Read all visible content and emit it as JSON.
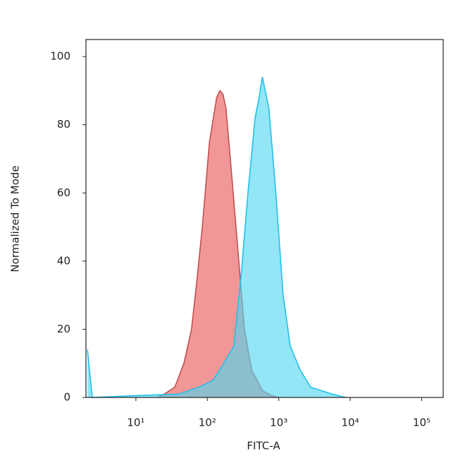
{
  "chart_data": {
    "type": "area",
    "xlabel": "FITC-A",
    "ylabel": "Normalized To Mode",
    "xscale": "log",
    "xlim": [
      2,
      200000
    ],
    "xticks": [
      {
        "value": 10,
        "label": "10¹"
      },
      {
        "value": 100,
        "label": "10²"
      },
      {
        "value": 1000,
        "label": "10³"
      },
      {
        "value": 10000,
        "label": "10⁴"
      },
      {
        "value": 100000,
        "label": "10⁵"
      }
    ],
    "ylim": [
      0,
      105
    ],
    "yticks": [
      0,
      20,
      40,
      60,
      80,
      100
    ],
    "grid": false,
    "series": [
      {
        "color": "#f08585",
        "stroke": "#c0504f",
        "x": [
          20,
          25,
          35,
          47,
          60,
          72,
          85,
          107,
          135,
          150,
          165,
          182,
          210,
          263,
          330,
          417,
          590,
          800,
          1000
        ],
        "values": [
          0,
          1,
          3,
          10,
          20,
          35,
          50,
          75,
          88,
          90,
          89,
          85,
          70,
          45,
          20,
          8,
          2,
          0.5,
          0
        ]
      },
      {
        "color": "#4fd6f0",
        "stroke": "#22c0e8",
        "x": [
          2.1,
          2.45,
          9,
          40,
          76,
          120,
          170,
          235,
          295,
          370,
          465,
          530,
          590,
          725,
          910,
          1150,
          1450,
          2000,
          2800,
          5600,
          8700
        ],
        "values": [
          14,
          0,
          0.5,
          1,
          3,
          5,
          10,
          15,
          35,
          60,
          82,
          88,
          94,
          85,
          60,
          30,
          15,
          8,
          3,
          1,
          0
        ]
      }
    ]
  }
}
